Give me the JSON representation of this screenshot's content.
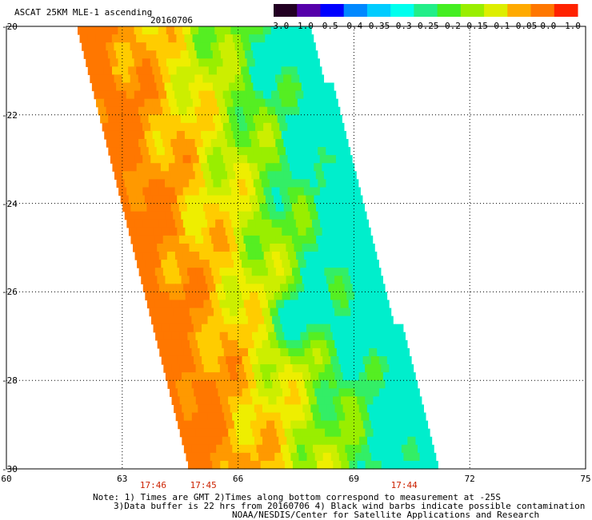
{
  "header": {
    "title": "ASCAT 25KM MLE-1 ascending",
    "date": "20160706"
  },
  "colorbar": {
    "labels": [
      "-3.0",
      "-1.0",
      "-0.5",
      "-0.4",
      "-0.35",
      "-0.3",
      "-0.25",
      "-0.2",
      "-0.15",
      "-0.1",
      "-0.05",
      "0.0",
      "1.0"
    ],
    "colors": [
      "#220022",
      "#5500aa",
      "#0000ff",
      "#0088ff",
      "#00ccff",
      "#00ffee",
      "#22ee88",
      "#44ee22",
      "#99ee00",
      "#ddee00",
      "#ffaa00",
      "#ff7700",
      "#ff2200"
    ]
  },
  "map": {
    "lon_range": [
      60,
      75
    ],
    "lat_range": [
      -30,
      -20
    ],
    "x_ticks": [
      "60",
      "63",
      "66",
      "69",
      "72",
      "75"
    ],
    "y_ticks": [
      "-20",
      "-22",
      "-24",
      "-26",
      "-28",
      "-30"
    ],
    "time_labels": [
      {
        "lon": 63.8,
        "text": "17:46"
      },
      {
        "lon": 65.1,
        "text": "17:45"
      },
      {
        "lon": 70.3,
        "text": "17:44"
      }
    ]
  },
  "notes": {
    "line1": "Note: 1) Times are GMT 2)Times along bottom correspond to measurement at -25S",
    "line2": "3)Data buffer is 22 hrs from 20160706 4) Black wind barbs indicate possible contamination",
    "line3": "NOAA/NESDIS/Center for Satellite Applications and Research"
  }
}
